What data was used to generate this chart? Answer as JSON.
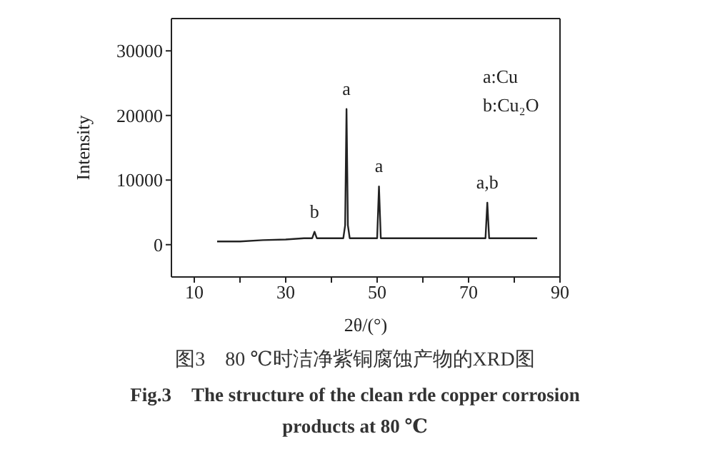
{
  "chart_data": {
    "type": "line",
    "xlabel": "2θ/(°)",
    "ylabel": "Intensity",
    "x": [
      15,
      20,
      25,
      30,
      34,
      35.8,
      36.3,
      36.8,
      38,
      42.6,
      43.0,
      43.3,
      43.6,
      44.0,
      47,
      50.0,
      50.4,
      50.8,
      51.5,
      60,
      70,
      73.7,
      74.1,
      74.5,
      80,
      85
    ],
    "series": [
      {
        "color": "#222222",
        "values": [
          500,
          500,
          700,
          800,
          1000,
          1000,
          2000,
          1000,
          1000,
          1000,
          3000,
          21000,
          3000,
          1000,
          1000,
          1000,
          9000,
          1000,
          1000,
          1000,
          1000,
          1000,
          6500,
          1000,
          1000,
          1000
        ]
      }
    ],
    "xlim": [
      5,
      90
    ],
    "xticks": [
      10,
      {
        "value": 20,
        "label": null
      },
      30,
      {
        "value": 40,
        "label": null
      },
      50,
      {
        "value": 60,
        "label": null
      },
      70,
      {
        "value": 80,
        "label": null
      },
      90
    ],
    "ylim": [
      -5000,
      35000
    ],
    "yticks": [
      0,
      10000,
      20000,
      30000
    ],
    "marker": "none",
    "line_style": "solid",
    "annotations": [
      {
        "text": "b",
        "x": 36.3,
        "y": 2000
      },
      {
        "text": "a",
        "x": 43.3,
        "y": 21000
      },
      {
        "text": "a",
        "x": 50.4,
        "y": 9000
      },
      {
        "text": "a,b",
        "x": 74.1,
        "y": 6500
      },
      "a:Cu",
      "b:Cu₂O",
      "图3　80 ℃时洁净紫铜腐蚀产物的XRD图",
      "Fig.3　The structure of the clean rde copper corrosion products at 80 ℃"
    ]
  }
}
